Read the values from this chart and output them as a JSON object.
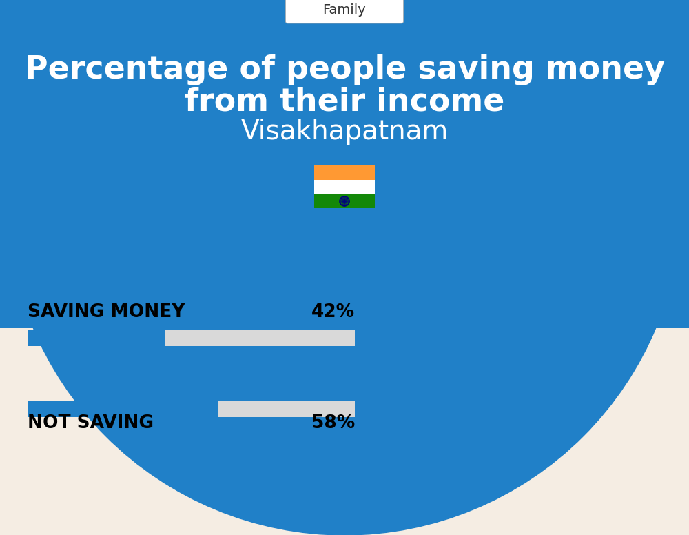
{
  "title_line1": "Percentage of people saving money",
  "title_line2": "from their income",
  "subtitle": "Visakhapatnam",
  "category_label": "Family",
  "bg_top_color": "#2080c8",
  "bg_bottom_color": "#f5ede3",
  "bar_active_color": "#2080c8",
  "bar_bg_color": "#d9d9d9",
  "label1": "SAVING MONEY",
  "value1": 42,
  "label1_pct": "42%",
  "label2": "NOT SAVING",
  "value2": 58,
  "label2_pct": "58%",
  "bar_max": 100,
  "title_fontsize": 33,
  "subtitle_fontsize": 28,
  "label_fontsize": 19,
  "pct_fontsize": 19,
  "category_fontsize": 14,
  "fig_width": 10.0,
  "fig_height": 7.76,
  "flag_orange": "#FF9933",
  "flag_green": "#138808",
  "flag_chakra": "#000080"
}
